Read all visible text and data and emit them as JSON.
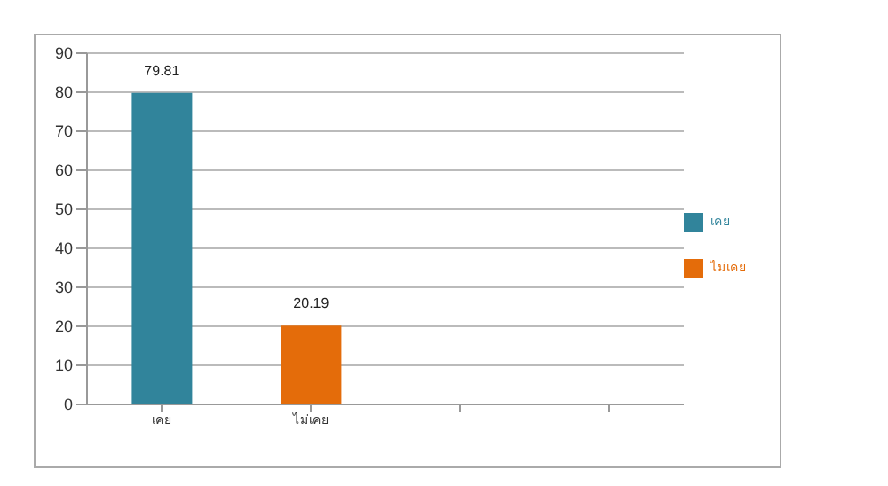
{
  "chart_data": {
    "type": "bar",
    "categories": [
      "เคย",
      "ไม่เคย",
      null,
      null
    ],
    "series": [
      {
        "name": "เคย",
        "color": "#31849b",
        "values": [
          79.81,
          null,
          null,
          null
        ]
      },
      {
        "name": "ไม่เคย",
        "color": "#e46c0a",
        "values": [
          null,
          20.19,
          null,
          null
        ]
      }
    ],
    "stacked": true,
    "ylim": [
      0,
      90
    ],
    "yticks": [
      0,
      10,
      20,
      30,
      40,
      50,
      60,
      70,
      80,
      90
    ],
    "grid": "y",
    "data_labels": true,
    "legend": "right"
  }
}
